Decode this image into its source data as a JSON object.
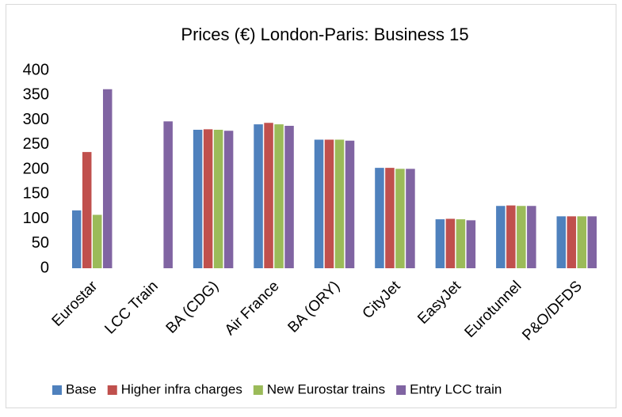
{
  "chart_data": {
    "type": "bar",
    "title": "Prices (€) London-Paris: Business 15",
    "categories": [
      "Eurostar",
      "LCC Train",
      "BA (CDG)",
      "Air France",
      "BA (ORY)",
      "CityJet",
      "EasyJet",
      "Eurotunnel",
      "P&O/DFDS"
    ],
    "series": [
      {
        "name": "Base",
        "color": "#4f81bd",
        "values": [
          117,
          null,
          280,
          291,
          260,
          203,
          99,
          126,
          105
        ]
      },
      {
        "name": "Higher infra charges",
        "color": "#c0504d",
        "values": [
          235,
          null,
          281,
          294,
          260,
          203,
          100,
          127,
          105
        ]
      },
      {
        "name": "New Eurostar trains",
        "color": "#9bbb59",
        "values": [
          108,
          null,
          280,
          291,
          260,
          201,
          99,
          126,
          105
        ]
      },
      {
        "name": "Entry LCC train",
        "color": "#8064a2",
        "values": [
          362,
          297,
          278,
          288,
          258,
          201,
          97,
          126,
          105
        ]
      }
    ],
    "ylim": [
      0,
      400
    ],
    "yticks": [
      0,
      50,
      100,
      150,
      200,
      250,
      300,
      350,
      400
    ],
    "grid": false,
    "legend": "bottom"
  }
}
